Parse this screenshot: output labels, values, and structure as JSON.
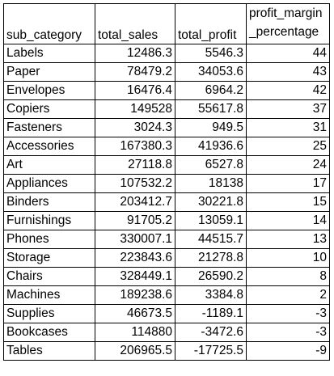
{
  "table": {
    "headers": {
      "sub_category": "sub_category",
      "total_sales": "total_sales",
      "total_profit": "total_profit",
      "profit_margin_line1": "profit_margin",
      "profit_margin_line2": "_percentage"
    },
    "rows": [
      {
        "sub_category": "Labels",
        "total_sales": "12486.3",
        "total_profit": "5546.3",
        "profit_margin_percentage": "44"
      },
      {
        "sub_category": "Paper",
        "total_sales": "78479.2",
        "total_profit": "34053.6",
        "profit_margin_percentage": "43"
      },
      {
        "sub_category": "Envelopes",
        "total_sales": "16476.4",
        "total_profit": "6964.2",
        "profit_margin_percentage": "42"
      },
      {
        "sub_category": "Copiers",
        "total_sales": "149528",
        "total_profit": "55617.8",
        "profit_margin_percentage": "37"
      },
      {
        "sub_category": "Fasteners",
        "total_sales": "3024.3",
        "total_profit": "949.5",
        "profit_margin_percentage": "31"
      },
      {
        "sub_category": "Accessories",
        "total_sales": "167380.3",
        "total_profit": "41936.6",
        "profit_margin_percentage": "25"
      },
      {
        "sub_category": "Art",
        "total_sales": "27118.8",
        "total_profit": "6527.8",
        "profit_margin_percentage": "24"
      },
      {
        "sub_category": "Appliances",
        "total_sales": "107532.2",
        "total_profit": "18138",
        "profit_margin_percentage": "17"
      },
      {
        "sub_category": "Binders",
        "total_sales": "203412.7",
        "total_profit": "30221.8",
        "profit_margin_percentage": "15"
      },
      {
        "sub_category": "Furnishings",
        "total_sales": "91705.2",
        "total_profit": "13059.1",
        "profit_margin_percentage": "14"
      },
      {
        "sub_category": "Phones",
        "total_sales": "330007.1",
        "total_profit": "44515.7",
        "profit_margin_percentage": "13"
      },
      {
        "sub_category": "Storage",
        "total_sales": "223843.6",
        "total_profit": "21278.8",
        "profit_margin_percentage": "10"
      },
      {
        "sub_category": "Chairs",
        "total_sales": "328449.1",
        "total_profit": "26590.2",
        "profit_margin_percentage": "8"
      },
      {
        "sub_category": "Machines",
        "total_sales": "189238.6",
        "total_profit": "3384.8",
        "profit_margin_percentage": "2"
      },
      {
        "sub_category": "Supplies",
        "total_sales": "46673.5",
        "total_profit": "-1189.1",
        "profit_margin_percentage": "-3"
      },
      {
        "sub_category": "Bookcases",
        "total_sales": "114880",
        "total_profit": "-3472.6",
        "profit_margin_percentage": "-3"
      },
      {
        "sub_category": "Tables",
        "total_sales": "206965.5",
        "total_profit": "-17725.5",
        "profit_margin_percentage": "-9"
      }
    ]
  }
}
